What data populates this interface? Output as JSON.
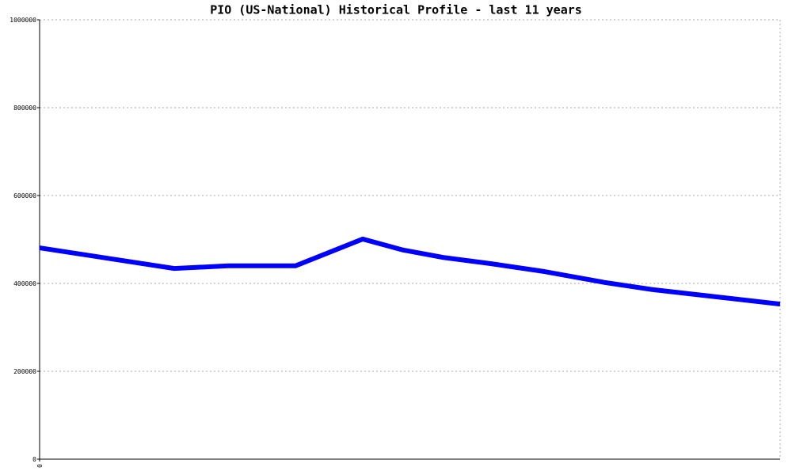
{
  "chart_data": {
    "type": "line",
    "title": "PIO (US-National) Historical Profile - last 11 years",
    "x": [
      0,
      2,
      2.8,
      3.8,
      4.8,
      5.4,
      6,
      6.7,
      7.5,
      8.4,
      9.1,
      11
    ],
    "series": [
      {
        "name": "PIO",
        "color": "#0000ff",
        "values": [
          481000,
          434000,
          440000,
          440000,
          501000,
          476000,
          459000,
          445000,
          427000,
          402000,
          386000,
          353000
        ]
      }
    ],
    "xlim": [
      0,
      11
    ],
    "xticks": [
      0
    ],
    "ylim": [
      0,
      1000000
    ],
    "yticks": [
      0,
      200000,
      400000,
      600000,
      800000,
      1000000
    ],
    "grid": true,
    "legend": false
  }
}
